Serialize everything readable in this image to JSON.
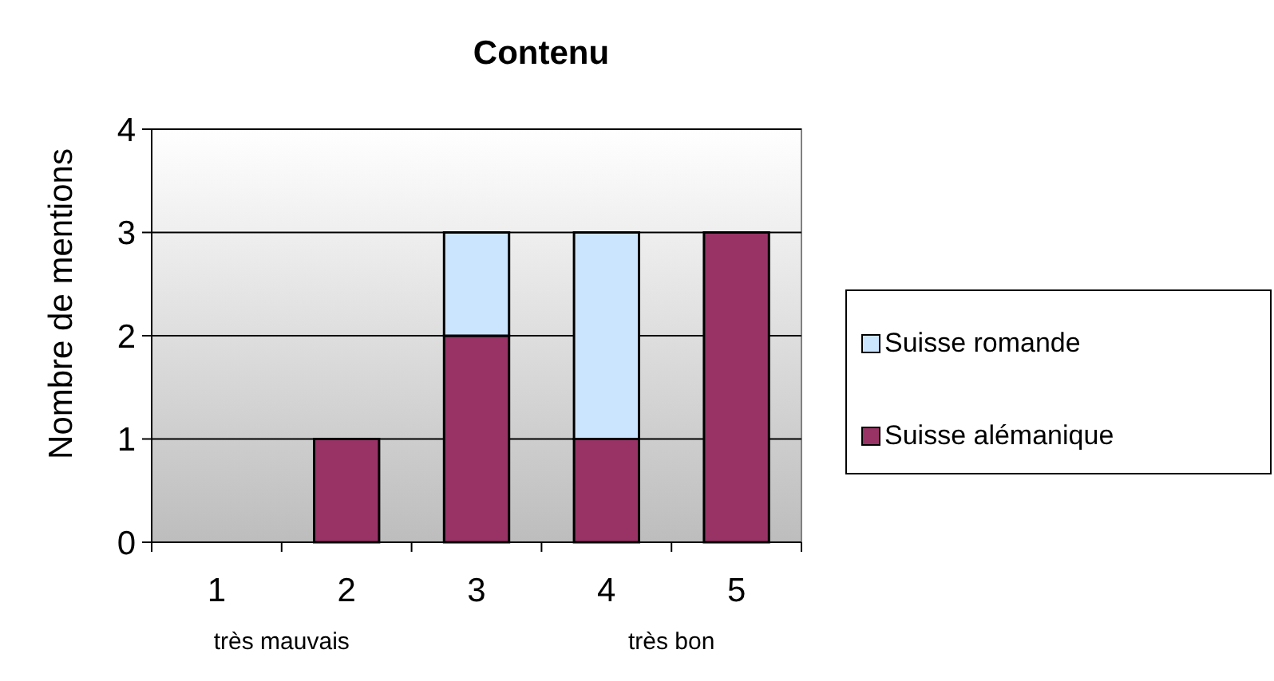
{
  "chart_data": {
    "type": "bar",
    "title": "Contenu",
    "ylabel": "Nombre de mentions",
    "categories": [
      "1",
      "2",
      "3",
      "4",
      "5"
    ],
    "stacked": true,
    "series": [
      {
        "name": "Suisse alémanique",
        "color": "#993366",
        "values": [
          0,
          1,
          2,
          1,
          3
        ]
      },
      {
        "name": "Suisse romande",
        "color": "#cce5ff",
        "values": [
          0,
          0,
          1,
          2,
          0
        ]
      }
    ],
    "ylim": [
      0,
      4
    ],
    "yticks": [
      0,
      1,
      2,
      3,
      4
    ],
    "grid": "y",
    "legend": "right",
    "annotations": [
      "très mauvais",
      "très bon"
    ]
  }
}
